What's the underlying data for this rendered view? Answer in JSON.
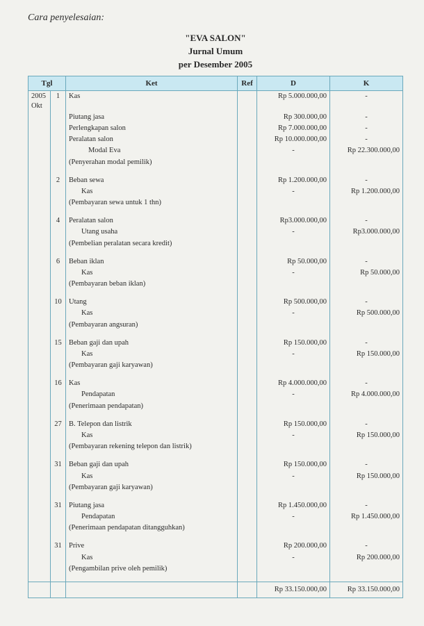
{
  "heading": "Cara penyelesaian:",
  "title": {
    "line1": "\"EVA SALON\"",
    "line2": "Jurnal Umum",
    "line3": "per Desember 2005"
  },
  "columns": {
    "tgl": "Tgl",
    "ket": "Ket",
    "ref": "Ref",
    "d": "D",
    "k": "K"
  },
  "year": "2005",
  "month": "Okt",
  "entries": [
    {
      "day": "1",
      "lines": [
        {
          "ket": "Kas",
          "indent": 0,
          "d": "Rp  5.000.000,00",
          "k": "-"
        },
        {
          "ket": "Piutang jasa",
          "indent": 0,
          "d": "Rp     300.000,00",
          "k": "-"
        },
        {
          "ket": "Perlengkapan salon",
          "indent": 0,
          "d": "Rp  7.000.000,00",
          "k": "-"
        },
        {
          "ket": "Peralatan salon",
          "indent": 0,
          "d": "Rp 10.000.000,00",
          "k": "-"
        },
        {
          "ket": "Modal Eva",
          "indent": 2,
          "d": "-",
          "k": "Rp 22.300.000,00"
        },
        {
          "ket": "(Penyerahan modal pemilik)",
          "indent": 0
        }
      ]
    },
    {
      "day": "2",
      "lines": [
        {
          "ket": "Beban sewa",
          "indent": 0,
          "d": "Rp  1.200.000,00",
          "k": "-"
        },
        {
          "ket": "Kas",
          "indent": 1,
          "d": "-",
          "k": "Rp  1.200.000,00"
        },
        {
          "ket": "(Pembayaran sewa untuk 1 thn)",
          "indent": 0
        }
      ]
    },
    {
      "day": "4",
      "lines": [
        {
          "ket": "Peralatan salon",
          "indent": 0,
          "d": "Rp3.000.000,00",
          "k": "-"
        },
        {
          "ket": "Utang usaha",
          "indent": 1,
          "d": "-",
          "k": "Rp3.000.000,00"
        },
        {
          "ket": "(Pembelian peralatan secara kredit)",
          "indent": 0
        }
      ]
    },
    {
      "day": "6",
      "lines": [
        {
          "ket": "Beban iklan",
          "indent": 0,
          "d": "Rp      50.000,00",
          "k": "-"
        },
        {
          "ket": "Kas",
          "indent": 1,
          "d": "-",
          "k": "Rp      50.000,00"
        },
        {
          "ket": "(Pembayaran beban iklan)",
          "indent": 0
        }
      ]
    },
    {
      "day": "10",
      "lines": [
        {
          "ket": "Utang",
          "indent": 0,
          "d": "Rp    500.000,00",
          "k": "-"
        },
        {
          "ket": "Kas",
          "indent": 1,
          "d": "-",
          "k": "Rp    500.000,00"
        },
        {
          "ket": "(Pembayaran angsuran)",
          "indent": 0
        }
      ]
    },
    {
      "day": "15",
      "lines": [
        {
          "ket": "Beban gaji dan upah",
          "indent": 0,
          "d": "Rp    150.000,00",
          "k": "-"
        },
        {
          "ket": "Kas",
          "indent": 1,
          "d": "-",
          "k": "Rp    150.000,00"
        },
        {
          "ket": "(Pembayaran gaji karyawan)",
          "indent": 0
        }
      ]
    },
    {
      "day": "16",
      "lines": [
        {
          "ket": "Kas",
          "indent": 0,
          "d": "Rp 4.000.000,00",
          "k": "-"
        },
        {
          "ket": "Pendapatan",
          "indent": 1,
          "d": "-",
          "k": "Rp 4.000.000,00"
        },
        {
          "ket": "(Penerimaan pendapatan)",
          "indent": 0
        }
      ]
    },
    {
      "day": "27",
      "lines": [
        {
          "ket": "B. Telepon dan listrik",
          "indent": 0,
          "d": "Rp    150.000,00",
          "k": "-"
        },
        {
          "ket": "Kas",
          "indent": 1,
          "d": "-",
          "k": "Rp    150.000,00"
        },
        {
          "ket": "(Pembayaran rekening telepon dan listrik)",
          "indent": 0
        }
      ]
    },
    {
      "day": "31",
      "lines": [
        {
          "ket": "Beban gaji dan upah",
          "indent": 0,
          "d": "Rp    150.000,00",
          "k": "-"
        },
        {
          "ket": "Kas",
          "indent": 1,
          "d": "-",
          "k": "Rp    150.000,00"
        },
        {
          "ket": "(Pembayaran gaji karyawan)",
          "indent": 0
        }
      ]
    },
    {
      "day": "31",
      "lines": [
        {
          "ket": "Piutang jasa",
          "indent": 0,
          "d": "Rp 1.450.000,00",
          "k": "-"
        },
        {
          "ket": "Pendapatan",
          "indent": 1,
          "d": "-",
          "k": "Rp 1.450.000,00"
        },
        {
          "ket": "(Penerimaan pendapatan ditangguhkan)",
          "indent": 0
        }
      ]
    },
    {
      "day": "31",
      "lines": [
        {
          "ket": "Prive",
          "indent": 0,
          "d": "Rp    200.000,00",
          "k": "-"
        },
        {
          "ket": "Kas",
          "indent": 1,
          "d": "-",
          "k": "Rp    200.000,00"
        },
        {
          "ket": "(Pengambilan prive oleh pemilik)",
          "indent": 0
        }
      ]
    }
  ],
  "totals": {
    "d": "Rp 33.150.000,00",
    "k": "Rp 33.150.000,00"
  },
  "style": {
    "background_color": "#f2f2ee",
    "header_bg": "#c9e8f2",
    "border_color": "#6aa8bb",
    "font_family": "Georgia, serif",
    "title_fontsize": 13,
    "body_fontsize": 10.5
  }
}
